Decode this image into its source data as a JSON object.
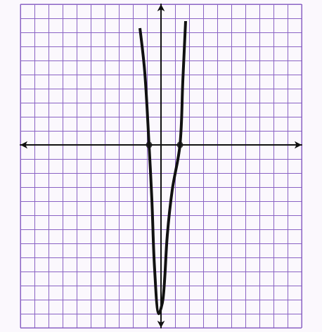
{
  "chart_data": {
    "type": "line",
    "xlim": [
      -10,
      10
    ],
    "xticks": [
      -10,
      -9,
      -8,
      -7,
      -6,
      -5,
      -4,
      -3,
      -2,
      -1,
      0,
      1,
      2,
      3,
      4,
      5,
      6,
      7,
      8,
      9,
      10
    ],
    "ylim": [
      -13,
      10
    ],
    "yticks": [
      -13,
      -12,
      -11,
      -10,
      -9,
      -8,
      -7,
      -6,
      -5,
      -4,
      -3,
      -2,
      -1,
      0,
      1,
      2,
      3,
      4,
      5,
      6,
      7,
      8,
      9,
      10
    ],
    "grid": true,
    "tick_labels": false,
    "series": [
      {
        "type": "line",
        "color": "#111111",
        "marker": "none",
        "line_style": "solid",
        "x": [
          -1.5,
          -1.15,
          -0.85,
          -0.65,
          -0.45,
          -0.15,
          0.15,
          0.45,
          0.8,
          1.35,
          1.55,
          1.75
        ],
        "values": [
          8.3,
          5.1,
          0,
          -3.9,
          -8.9,
          -12,
          -10.9,
          -6.4,
          -3.2,
          0,
          4.5,
          8.8
        ]
      },
      {
        "type": "scatter",
        "color": "#111111",
        "marker": "circle",
        "x": [
          -0.85,
          1.35
        ],
        "values": [
          0,
          0
        ]
      }
    ]
  }
}
